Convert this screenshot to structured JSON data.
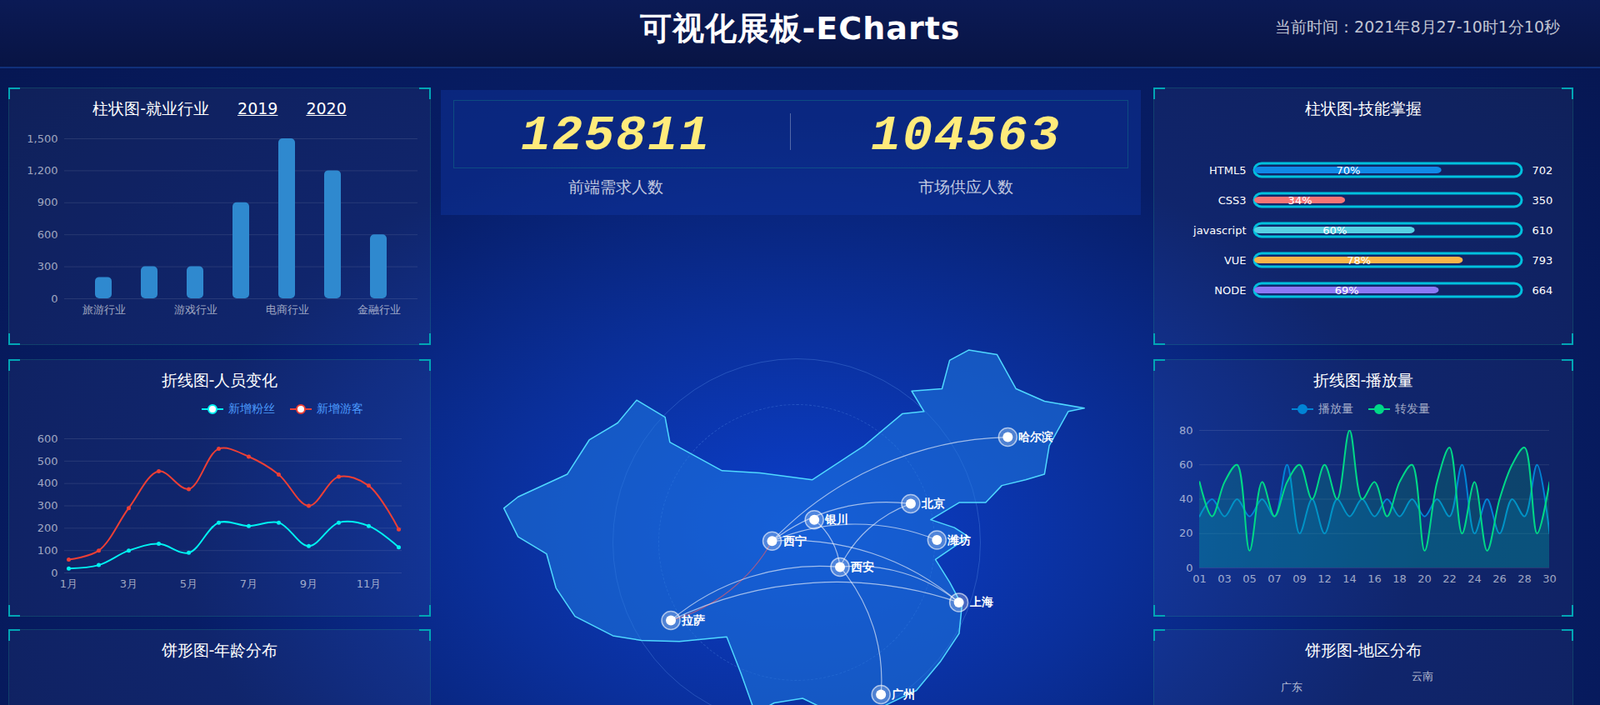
{
  "header": {
    "title": "可视化展板-ECharts",
    "time": "当前时间：2021年8月27-10时1分10秒"
  },
  "stats": [
    {
      "value": 125811,
      "label": "前端需求人数"
    },
    {
      "value": 104563,
      "label": "市场供应人数"
    }
  ],
  "chart_data": [
    {
      "type": "bar",
      "title": "柱状图-就业行业",
      "years": [
        "2019",
        "2020"
      ],
      "categories": [
        "旅游行业",
        null,
        "游戏行业",
        null,
        "电商行业",
        null,
        "金融行业"
      ],
      "values": [
        200,
        300,
        300,
        900,
        1500,
        1200,
        600
      ],
      "color": "#2f89cf",
      "ylim": [
        0,
        1500
      ],
      "yticks": [
        0,
        300,
        600,
        900,
        {
          "value": 1200,
          "label": "1,200"
        },
        {
          "value": 1500,
          "label": "1,500"
        }
      ],
      "grid": true
    },
    {
      "type": "line",
      "title": "折线图-人员变化",
      "categories": [
        "1月",
        null,
        "3月",
        null,
        "5月",
        null,
        "7月",
        null,
        "9月",
        null,
        "11月",
        null
      ],
      "series": [
        {
          "name": "新增粉丝",
          "color": "#00f2f1",
          "values": [
            20,
            35,
            100,
            130,
            90,
            225,
            210,
            225,
            120,
            225,
            210,
            115
          ]
        },
        {
          "name": "新增游客",
          "color": "#ed3f35",
          "values": [
            60,
            100,
            290,
            455,
            375,
            555,
            520,
            440,
            300,
            430,
            390,
            195
          ]
        }
      ],
      "ylim": [
        0,
        600
      ],
      "yticks": [
        0,
        100,
        200,
        300,
        400,
        500,
        600
      ],
      "grid": true,
      "legend": "top",
      "marker": "circle",
      "line_style": "smooth"
    },
    {
      "type": "pie",
      "title": "饼形图-年龄分布"
    },
    {
      "type": "bar",
      "title": "柱状图-技能掌握",
      "orientation": "horizontal",
      "categories": [
        "HTML5",
        "CSS3",
        "javascript",
        "VUE",
        "NODE"
      ],
      "values": [
        70,
        34,
        60,
        78,
        69
      ],
      "value_labels": [
        "70%",
        "34%",
        "60%",
        "78%",
        "69%"
      ],
      "totals": [
        702,
        350,
        610,
        793,
        664
      ],
      "colors": [
        "#1089e7",
        "#f57474",
        "#56d0e3",
        "#f8b448",
        "#8b78f6"
      ],
      "xlim": [
        0,
        100
      ],
      "data_labels": true,
      "tick_labels": "y"
    },
    {
      "type": "area",
      "title": "折线图-播放量",
      "categories": [
        "01",
        null,
        "03",
        null,
        "05",
        null,
        "07",
        null,
        "09",
        null,
        "12",
        null,
        "14",
        null,
        "16",
        null,
        "18",
        null,
        "20",
        null,
        "22",
        null,
        "24",
        null,
        "26",
        null,
        "28",
        null,
        "30"
      ],
      "series": [
        {
          "name": "播放量",
          "color": "#0184d5",
          "values": [
            30,
            40,
            30,
            40,
            30,
            40,
            30,
            60,
            20,
            40,
            20,
            40,
            30,
            40,
            30,
            40,
            30,
            40,
            30,
            40,
            30,
            60,
            20,
            40,
            20,
            40,
            30,
            60,
            20
          ]
        },
        {
          "name": "转发量",
          "color": "#00d887",
          "values": [
            50,
            30,
            50,
            60,
            10,
            50,
            30,
            50,
            60,
            40,
            60,
            40,
            80,
            40,
            50,
            30,
            50,
            60,
            10,
            50,
            70,
            20,
            50,
            10,
            40,
            60,
            70,
            20,
            50
          ]
        }
      ],
      "ylim": [
        0,
        80
      ],
      "yticks": [
        0,
        20,
        40,
        60,
        80
      ],
      "grid": true,
      "legend": "top",
      "line_style": "smooth"
    },
    {
      "type": "pie",
      "title": "饼形图-地区分布",
      "categories": [
        "广东",
        "云南"
      ]
    }
  ],
  "map": {
    "cities": [
      {
        "name": "哈尔滨",
        "lon": 126.63,
        "lat": 45.75
      },
      {
        "name": "北京",
        "lon": 116.4,
        "lat": 39.9
      },
      {
        "name": "银川",
        "lon": 106.23,
        "lat": 38.49
      },
      {
        "name": "西宁",
        "lon": 101.78,
        "lat": 36.62
      },
      {
        "name": "潍坊",
        "lon": 119.16,
        "lat": 36.71
      },
      {
        "name": "西安",
        "lon": 108.94,
        "lat": 34.34
      },
      {
        "name": "上海",
        "lon": 121.47,
        "lat": 31.23
      },
      {
        "name": "拉萨",
        "lon": 91.11,
        "lat": 29.65
      },
      {
        "name": "广州",
        "lon": 113.26,
        "lat": 23.13
      }
    ],
    "routes": [
      {
        "from": "西宁",
        "to": "拉萨",
        "color": "#ff5a5a"
      },
      {
        "from": "西宁",
        "to": "北京",
        "color": "#ffffff"
      },
      {
        "from": "西宁",
        "to": "哈尔滨",
        "color": "#ffffff"
      },
      {
        "from": "西宁",
        "to": "潍坊",
        "color": "#ffffff"
      },
      {
        "from": "西宁",
        "to": "上海",
        "color": "#ffffff"
      },
      {
        "from": "拉萨",
        "to": "西安",
        "color": "#ffffff"
      },
      {
        "from": "拉萨",
        "to": "上海",
        "color": "#ffffff"
      },
      {
        "from": "西安",
        "to": "北京",
        "color": "#ffffff"
      },
      {
        "from": "西安",
        "to": "上海",
        "color": "#ffffff"
      },
      {
        "from": "西安",
        "to": "广州",
        "color": "#ffffff"
      },
      {
        "from": "银川",
        "to": "西安",
        "color": "#ffffff"
      }
    ]
  }
}
